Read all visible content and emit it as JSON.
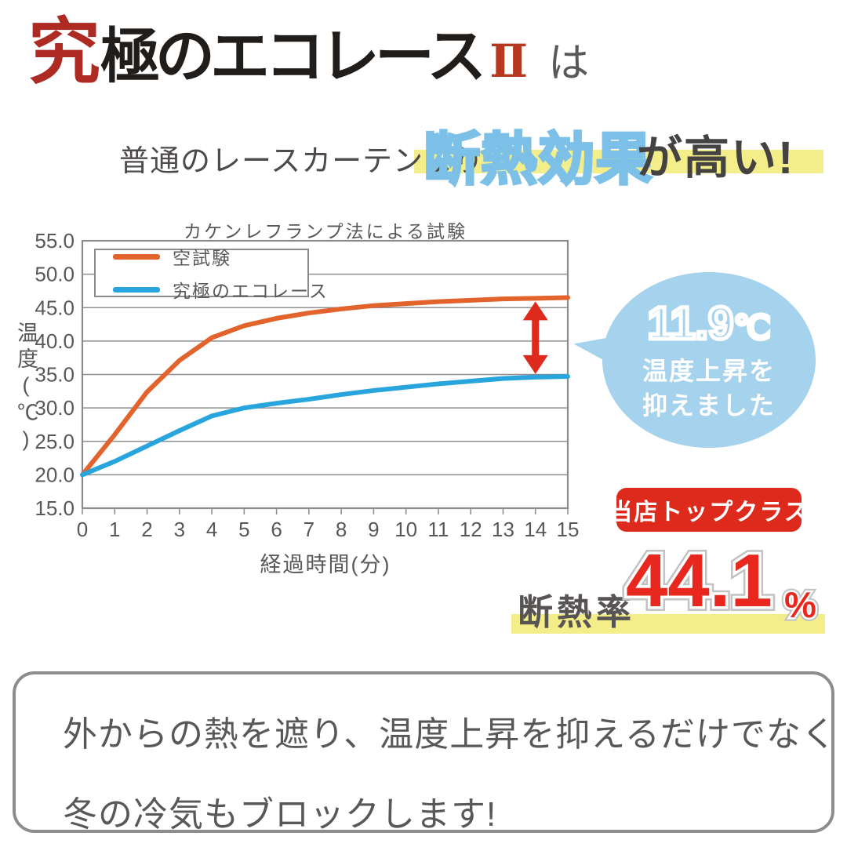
{
  "logo": {
    "accent_char": "究",
    "main_text": "極のエコレース",
    "numeral": "Ⅱ",
    "particle": "は",
    "accent_color": "#ae2b24",
    "numeral_color": "#b5381f"
  },
  "headline": {
    "lead": "普通のレースカーテンより",
    "highlight": "断熱効果",
    "tail": "が高い!",
    "highlight_outline_color": "#7cc0e8",
    "band_color": "#f3ee8a"
  },
  "chart_data": {
    "type": "line",
    "title": "カケンレフランプ法による試験",
    "xlabel": "経過時間(分)",
    "ylabel": "温度(℃)",
    "x": [
      0,
      1,
      2,
      3,
      4,
      5,
      6,
      7,
      8,
      9,
      10,
      11,
      12,
      13,
      14,
      15
    ],
    "ylim": [
      15,
      55
    ],
    "ytick_step": 5,
    "grid": "horizontal",
    "legend_position": "top-left",
    "series": [
      {
        "name": "空試験",
        "color": "#e2632b",
        "values": [
          20.0,
          26.0,
          32.4,
          37.1,
          40.5,
          42.3,
          43.4,
          44.2,
          44.8,
          45.3,
          45.6,
          45.9,
          46.1,
          46.3,
          46.4,
          46.5
        ]
      },
      {
        "name": "究極のエコレース",
        "color": "#29a5de",
        "values": [
          20.0,
          22.0,
          24.3,
          26.6,
          28.8,
          30.0,
          30.7,
          31.3,
          32.0,
          32.6,
          33.1,
          33.6,
          34.0,
          34.4,
          34.6,
          34.7
        ]
      }
    ],
    "annotation_arrow": {
      "x": 14,
      "color": "#de2a1c"
    }
  },
  "bubble": {
    "value_number": "11.9",
    "value_unit": "℃",
    "caption_line1": "温度上昇を",
    "caption_line2": "抑えました",
    "color": "#a5d2ed"
  },
  "badge": {
    "label": "当店トップクラス",
    "color": "#de2a1c"
  },
  "insulation": {
    "label": "断熱率",
    "value": "44.1",
    "unit": "%",
    "value_color": "#e8281e",
    "band_color": "#f3ee8a"
  },
  "footer_box": {
    "line1": "外からの熱を遮り、温度上昇を抑えるだけでなく",
    "line2": "冬の冷気もブロックします!"
  }
}
